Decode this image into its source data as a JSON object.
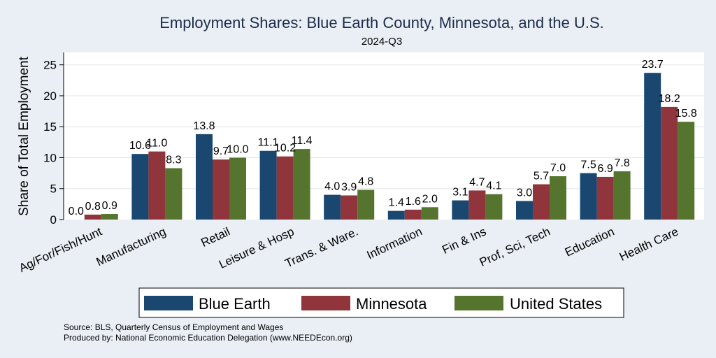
{
  "chart_data": {
    "type": "bar",
    "title": "Employment Shares: Blue Earth County, Minnesota, and the U.S.",
    "subtitle": "2024-Q3",
    "ylabel": "Share of Total Employment",
    "xlabel": "",
    "ylim": [
      0,
      27
    ],
    "yticks": [
      0,
      5,
      10,
      15,
      20,
      25
    ],
    "grid": true,
    "legend_position": "bottom",
    "categories": [
      "Ag/For/Fish/Hunt",
      "Manufacturing",
      "Retail",
      "Leisure & Hosp",
      "Trans. & Ware.",
      "Information",
      "Fin & Ins",
      "Prof, Sci, Tech",
      "Education",
      "Health Care"
    ],
    "series": [
      {
        "name": "Blue Earth",
        "color": "#1a476f",
        "values": [
          0.0,
          10.6,
          13.8,
          11.1,
          4.0,
          1.4,
          3.1,
          3.0,
          7.5,
          23.7
        ]
      },
      {
        "name": "Minnesota",
        "color": "#90353b",
        "values": [
          0.8,
          11.0,
          9.7,
          10.2,
          3.9,
          1.6,
          4.7,
          5.7,
          6.9,
          18.2
        ]
      },
      {
        "name": "United States",
        "color": "#55752f",
        "values": [
          0.9,
          8.3,
          10.0,
          11.4,
          4.8,
          2.0,
          4.1,
          7.0,
          7.8,
          15.8
        ]
      }
    ]
  },
  "notes": {
    "source": "Source: BLS, Quarterly Census of Employment and Wages",
    "produced": "Produced by: National Economic Education Delegation (www.NEEDEcon.org)"
  }
}
